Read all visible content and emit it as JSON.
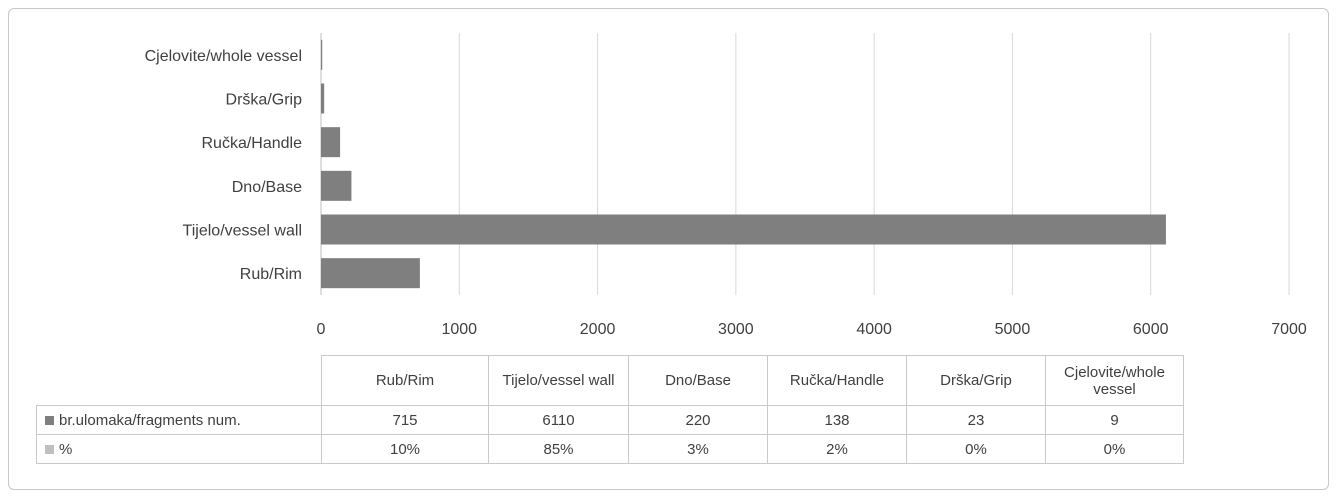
{
  "chart_data": {
    "type": "bar",
    "orientation": "horizontal",
    "categories": [
      "Rub/Rim",
      "Tijelo/vessel wall",
      "Dno/Base",
      "Ručka/Handle",
      "Drška/Grip",
      "Cjelovite/whole vessel"
    ],
    "series": [
      {
        "name": "br.ulomaka/fragments num.",
        "values": [
          715,
          6110,
          220,
          138,
          23,
          9
        ],
        "color": "#7f7f7f"
      },
      {
        "name": "%",
        "values": [
          "10%",
          "85%",
          "3%",
          "2%",
          "0%",
          "0%"
        ],
        "color": "#bfbfbf"
      }
    ],
    "xlim": [
      0,
      7000
    ],
    "x_ticks": [
      "0",
      "1000",
      "2000",
      "3000",
      "4000",
      "5000",
      "6000",
      "7000"
    ],
    "grid": true,
    "legend": "data table below chart"
  }
}
